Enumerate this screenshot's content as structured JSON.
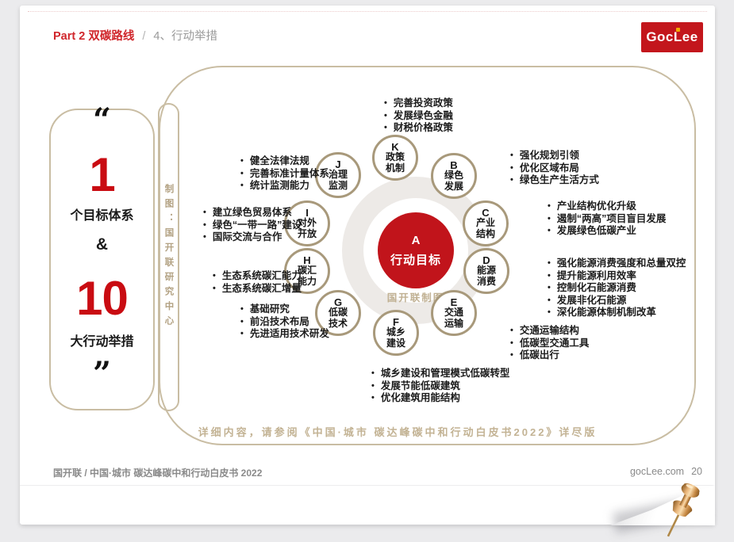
{
  "header": {
    "part": "Part 2 双碳路线",
    "separator": "/",
    "section": "4、行动举措"
  },
  "logo": {
    "pre": "Goc",
    "l": "L",
    "post": "ee"
  },
  "left_card": {
    "quote_open": "“",
    "number1": "1",
    "caption1": "个目标体系",
    "amp": "&",
    "number2": "10",
    "caption2": "大行动举措",
    "quote_close": "”"
  },
  "vertical_note": "制图：国开联研究中心",
  "diagram": {
    "center": {
      "letter": "A",
      "label": "行动目标"
    },
    "credit": "国开联制图",
    "nodes": [
      {
        "letter": "K",
        "line1": "政策",
        "line2": "机制"
      },
      {
        "letter": "B",
        "line1": "绿色",
        "line2": "发展"
      },
      {
        "letter": "C",
        "line1": "产业",
        "line2": "结构"
      },
      {
        "letter": "D",
        "line1": "能源",
        "line2": "消费"
      },
      {
        "letter": "E",
        "line1": "交通",
        "line2": "运输"
      },
      {
        "letter": "F",
        "line1": "城乡",
        "line2": "建设"
      },
      {
        "letter": "G",
        "line1": "低碳",
        "line2": "技术"
      },
      {
        "letter": "H",
        "line1": "碳汇",
        "line2": "能力"
      },
      {
        "letter": "I",
        "line1": "对外",
        "line2": "开放"
      },
      {
        "letter": "J",
        "line1": "治理",
        "line2": "监测"
      }
    ],
    "lists": {
      "K": [
        "完善投资政策",
        "发展绿色金融",
        "财税价格政策"
      ],
      "B": [
        "强化规划引领",
        "优化区域布局",
        "绿色生产生活方式"
      ],
      "C": [
        "产业结构优化升级",
        "遏制“两高”项目盲目发展",
        "发展绿色低碳产业"
      ],
      "D": [
        "强化能源消费强度和总量双控",
        "提升能源利用效率",
        "控制化石能源消费",
        "发展非化石能源",
        "深化能源体制机制改革"
      ],
      "E": [
        "交通运输结构",
        "低碳型交通工具",
        "低碳出行"
      ],
      "F": [
        "城乡建设和管理模式低碳转型",
        "发展节能低碳建筑",
        "优化建筑用能结构"
      ],
      "G": [
        "基础研究",
        "前沿技术布局",
        "先进适用技术研发"
      ],
      "H": [
        "生态系统碳汇能力",
        "生态系统碳汇增量"
      ],
      "I": [
        "建立绿色贸易体系",
        "绿色“一带一路”建设",
        "国际交流与合作"
      ],
      "J": [
        "健全法律法规",
        "完善标准计量体系",
        "统计监测能力"
      ]
    },
    "footnote": "详细内容，请参阅《中国·城市 碳达峰碳中和行动白皮书2022》详尽版"
  },
  "footer": {
    "left": "国开联 / 中国·城市 碳达峰碳中和行动白皮书 2022",
    "site": "gocLee.com",
    "page": "20"
  },
  "colors": {
    "accent_red": "#c1141b",
    "header_red": "#d0262b",
    "tan_border": "#c9bda3",
    "tan_text": "#b3a283",
    "logo_red": "#c3161c",
    "logo_dot_yellow": "#f5a800",
    "ring_gray": "#edeae7"
  }
}
